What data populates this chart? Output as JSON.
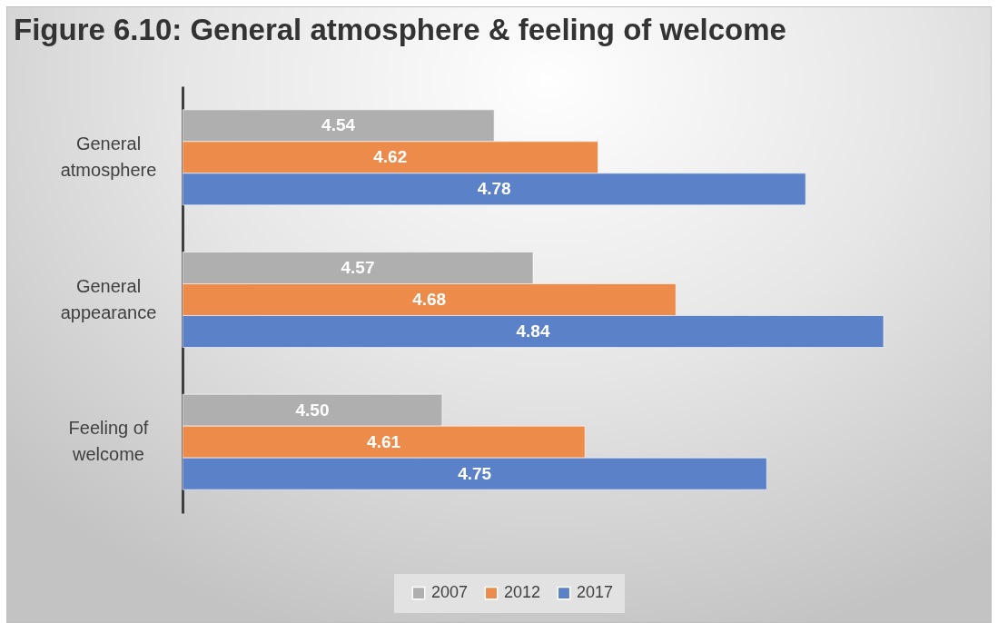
{
  "chart_data": {
    "type": "bar",
    "orientation": "horizontal",
    "title": "Figure 6.10: General atmosphere & feeling of welcome",
    "categories": [
      "General atmosphere",
      "General appearance",
      "Feeling of welcome"
    ],
    "series": [
      {
        "name": "2007",
        "color": "#afafaf",
        "values": [
          4.54,
          4.57,
          4.5
        ],
        "value_labels": [
          "4.54",
          "4.57",
          "4.50"
        ]
      },
      {
        "name": "2012",
        "color": "#ec8b4a",
        "values": [
          4.62,
          4.68,
          4.61
        ],
        "value_labels": [
          "4.62",
          "4.68",
          "4.61"
        ]
      },
      {
        "name": "2017",
        "color": "#5b81c9",
        "values": [
          4.78,
          4.84,
          4.75
        ],
        "value_labels": [
          "4.78",
          "4.84",
          "4.75"
        ]
      }
    ],
    "xlim": [
      4.3,
      4.84
    ],
    "tick_labels": "y",
    "legend": "bottom"
  }
}
